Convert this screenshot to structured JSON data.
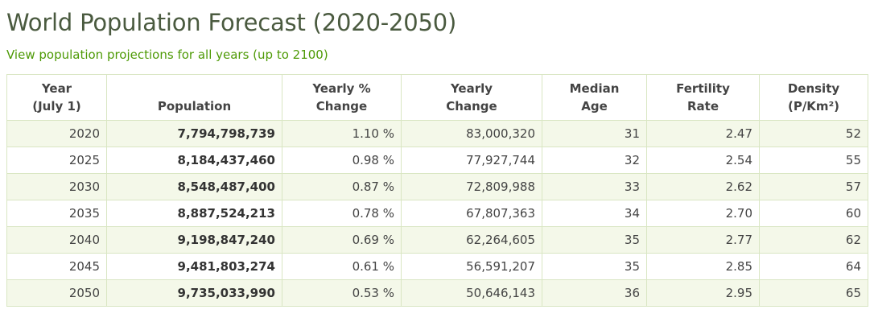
{
  "page": {
    "title": "World Population Forecast (2020-2050)",
    "link_text": "View population projections for all years (up to 2100)"
  },
  "colors": {
    "title": "#4a5a3f",
    "link": "#4e9a06",
    "border": "#d9e6c3",
    "row_alt": "#f4f8e9"
  },
  "table": {
    "headers": [
      [
        "Year",
        "(July 1)"
      ],
      [
        "Population"
      ],
      [
        "Yearly %",
        "Change"
      ],
      [
        "Yearly",
        "Change"
      ],
      [
        "Median",
        "Age"
      ],
      [
        "Fertility",
        "Rate"
      ],
      [
        "Density",
        "(P/Km²)"
      ]
    ],
    "rows": [
      [
        "2020",
        "7,794,798,739",
        "1.10 %",
        "83,000,320",
        "31",
        "2.47",
        "52"
      ],
      [
        "2025",
        "8,184,437,460",
        "0.98 %",
        "77,927,744",
        "32",
        "2.54",
        "55"
      ],
      [
        "2030",
        "8,548,487,400",
        "0.87 %",
        "72,809,988",
        "33",
        "2.62",
        "57"
      ],
      [
        "2035",
        "8,887,524,213",
        "0.78 %",
        "67,807,363",
        "34",
        "2.70",
        "60"
      ],
      [
        "2040",
        "9,198,847,240",
        "0.69 %",
        "62,264,605",
        "35",
        "2.77",
        "62"
      ],
      [
        "2045",
        "9,481,803,274",
        "0.61 %",
        "56,591,207",
        "35",
        "2.85",
        "64"
      ],
      [
        "2050",
        "9,735,033,990",
        "0.53 %",
        "50,646,143",
        "36",
        "2.95",
        "65"
      ]
    ]
  }
}
